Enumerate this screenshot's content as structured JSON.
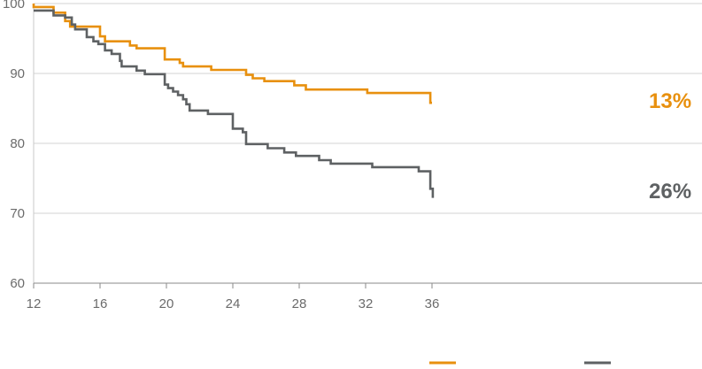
{
  "chart_data": {
    "type": "line",
    "step": true,
    "x_ticks": [
      "12",
      "16",
      "20",
      "24",
      "28",
      "32",
      "36"
    ],
    "y_ticks": [
      "60",
      "70",
      "80",
      "90",
      "100"
    ],
    "xlim": [
      12,
      39
    ],
    "ylim": [
      60,
      100
    ],
    "grid": "horizontal",
    "legend": "bottom-right",
    "series": [
      {
        "color": "#E8900E",
        "end_label": "13%",
        "points": [
          [
            12,
            100
          ],
          [
            12,
            99.5
          ],
          [
            13.2,
            99.5
          ],
          [
            13.2,
            98.7
          ],
          [
            13.9,
            98.7
          ],
          [
            13.9,
            97.5
          ],
          [
            14.2,
            97.5
          ],
          [
            14.2,
            96.7
          ],
          [
            16,
            96.7
          ],
          [
            16,
            95.3
          ],
          [
            16.3,
            95.3
          ],
          [
            16.3,
            94.6
          ],
          [
            17.8,
            94.6
          ],
          [
            17.8,
            94.0
          ],
          [
            18.2,
            94.0
          ],
          [
            18.2,
            93.6
          ],
          [
            19.9,
            93.6
          ],
          [
            19.9,
            92.0
          ],
          [
            20.8,
            92.0
          ],
          [
            20.8,
            91.5
          ],
          [
            21,
            91.5
          ],
          [
            21,
            91.0
          ],
          [
            22.7,
            91.0
          ],
          [
            22.7,
            90.5
          ],
          [
            24.8,
            90.5
          ],
          [
            24.8,
            89.8
          ],
          [
            25.2,
            89.8
          ],
          [
            25.2,
            89.3
          ],
          [
            25.9,
            89.3
          ],
          [
            25.9,
            88.9
          ],
          [
            27.7,
            88.9
          ],
          [
            27.7,
            88.3
          ],
          [
            28.4,
            88.3
          ],
          [
            28.4,
            87.7
          ],
          [
            32.1,
            87.7
          ],
          [
            32.1,
            87.2
          ],
          [
            35.9,
            87.2
          ],
          [
            35.9,
            85.8
          ],
          [
            36,
            85.8
          ]
        ]
      },
      {
        "color": "#5E6163",
        "end_label": "26%",
        "points": [
          [
            12,
            99
          ],
          [
            13.2,
            99
          ],
          [
            13.2,
            98.3
          ],
          [
            13.9,
            98.3
          ],
          [
            13.9,
            98.0
          ],
          [
            14.3,
            98.0
          ],
          [
            14.3,
            97.0
          ],
          [
            14.5,
            97.0
          ],
          [
            14.5,
            96.3
          ],
          [
            15.2,
            96.3
          ],
          [
            15.2,
            95.2
          ],
          [
            15.6,
            95.2
          ],
          [
            15.6,
            94.6
          ],
          [
            15.9,
            94.6
          ],
          [
            15.9,
            94.2
          ],
          [
            16.3,
            94.2
          ],
          [
            16.3,
            93.3
          ],
          [
            16.7,
            93.3
          ],
          [
            16.7,
            92.8
          ],
          [
            17.2,
            92.8
          ],
          [
            17.2,
            91.8
          ],
          [
            17.3,
            91.8
          ],
          [
            17.3,
            91.0
          ],
          [
            18.2,
            91.0
          ],
          [
            18.2,
            90.4
          ],
          [
            18.7,
            90.4
          ],
          [
            18.7,
            89.9
          ],
          [
            19.9,
            89.9
          ],
          [
            19.9,
            88.4
          ],
          [
            20.1,
            88.4
          ],
          [
            20.1,
            87.9
          ],
          [
            20.4,
            87.9
          ],
          [
            20.4,
            87.4
          ],
          [
            20.7,
            87.4
          ],
          [
            20.7,
            86.9
          ],
          [
            21,
            86.9
          ],
          [
            21,
            86.3
          ],
          [
            21.2,
            86.3
          ],
          [
            21.2,
            85.6
          ],
          [
            21.4,
            85.6
          ],
          [
            21.4,
            84.7
          ],
          [
            22.5,
            84.7
          ],
          [
            22.5,
            84.2
          ],
          [
            24.0,
            84.2
          ],
          [
            24.0,
            82.1
          ],
          [
            24.6,
            82.1
          ],
          [
            24.6,
            81.6
          ],
          [
            24.8,
            81.6
          ],
          [
            24.8,
            79.9
          ],
          [
            26.1,
            79.9
          ],
          [
            26.1,
            79.3
          ],
          [
            27.1,
            79.3
          ],
          [
            27.1,
            78.7
          ],
          [
            27.8,
            78.7
          ],
          [
            27.8,
            78.2
          ],
          [
            29.2,
            78.2
          ],
          [
            29.2,
            77.6
          ],
          [
            29.9,
            77.6
          ],
          [
            29.9,
            77.1
          ],
          [
            32.4,
            77.1
          ],
          [
            32.4,
            76.6
          ],
          [
            35.2,
            76.6
          ],
          [
            35.2,
            76.0
          ],
          [
            35.9,
            76.0
          ],
          [
            35.9,
            73.5
          ],
          [
            36.05,
            73.5
          ],
          [
            36.05,
            72.2
          ]
        ]
      }
    ]
  }
}
